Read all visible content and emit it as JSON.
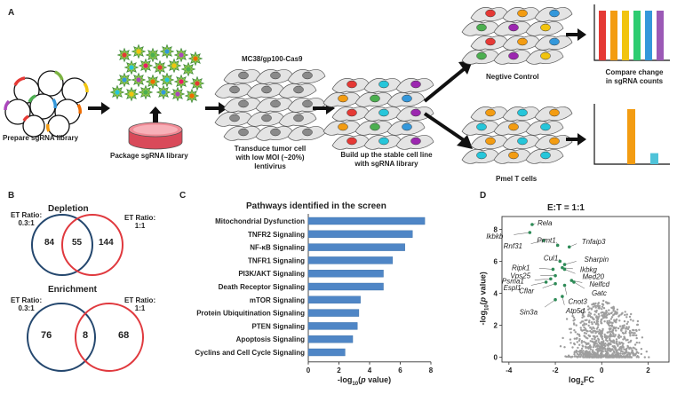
{
  "panels": {
    "a": "A",
    "b": "B",
    "c": "C",
    "d": "D"
  },
  "workflow": {
    "prepare": "Prepare sgRNA library",
    "package": "Package sgRNA library",
    "cell_line": "MC38/gp100-Cas9",
    "transduce_1": "Transduce tumor cell",
    "transduce_2": "with low MOI (~20%) lentivirus",
    "build_1": "Build up the stable cell line",
    "build_2": "with sgRNA library",
    "negative": "Negtive Control",
    "pmel": "Pmel T cells",
    "compare_1": "Compare change",
    "compare_2": "in sgRNA counts"
  },
  "bar_colors": [
    "#e53935",
    "#f39c12",
    "#f1c40f",
    "#2ecc71",
    "#3498db",
    "#9b59b6"
  ],
  "pmel_bars": [
    {
      "color": "#f39c12",
      "value": 1.0
    },
    {
      "color": "#4fc3d9",
      "value": 0.2
    }
  ],
  "venn": {
    "depletion": {
      "title": "Depletion",
      "left_ratio_1": "ET Ratio:",
      "left_ratio_2": "0.3:1",
      "right_ratio_1": "ET Ratio:",
      "right_ratio_2": "1:1",
      "left_only": "84",
      "overlap": "55",
      "right_only": "144"
    },
    "enrichment": {
      "title": "Enrichment",
      "left_ratio_1": "ET Ratio:",
      "left_ratio_2": "0.3:1",
      "right_ratio_1": "ET Ratio:",
      "right_ratio_2": "1:1",
      "left_only": "76",
      "overlap": "8",
      "right_only": "68"
    },
    "colors": {
      "left": "#24476e",
      "right": "#e0393e"
    }
  },
  "chart_data": [
    {
      "type": "bar",
      "orientation": "horizontal",
      "title": "Pathways identified in the screen",
      "xlabel": "-log10(p value)",
      "xlim": [
        0,
        8
      ],
      "xticks": [
        "0",
        "2",
        "4",
        "6",
        "8"
      ],
      "categories": [
        "Mitochondrial Dysfunction",
        "TNFR2 Signaling",
        "NF-κB Signaling",
        "TNFR1 Signaling",
        "PI3K/AKT Signaling",
        "Death Receptor Signaling",
        "mTOR Signaling",
        "Protein Ubiquitination Signaling",
        "PTEN Signaling",
        "Apoptosis Signaling",
        "Cyclins and Cell Cycle Signaling"
      ],
      "values": [
        7.6,
        6.8,
        6.3,
        5.5,
        4.9,
        4.9,
        3.4,
        3.3,
        3.2,
        2.9,
        2.4
      ],
      "bar_color": "#4f86c6"
    },
    {
      "type": "scatter",
      "title": "E:T = 1:1",
      "xlabel": "log2FC",
      "ylabel": "-log10(p value)",
      "xlim": [
        -4.3,
        2.9
      ],
      "ylim": [
        -0.3,
        8.8
      ],
      "xticks": [
        "-4",
        "-2",
        "0",
        "2"
      ],
      "yticks": [
        "0",
        "2",
        "4",
        "6",
        "8"
      ],
      "background_color": "#9e9e9e",
      "highlight_color": "#2e8b57",
      "labeled_points": [
        {
          "label": "Rela",
          "x": -3.0,
          "y": 8.3
        },
        {
          "label": "Ikbkb",
          "x": -3.1,
          "y": 7.8
        },
        {
          "label": "Rnf31",
          "x": -2.5,
          "y": 7.3
        },
        {
          "label": "Prmt1",
          "x": -1.9,
          "y": 7.0
        },
        {
          "label": "Tnfaip3",
          "x": -1.4,
          "y": 6.9
        },
        {
          "label": "Cul1",
          "x": -1.8,
          "y": 6.0
        },
        {
          "label": "Sharpin",
          "x": -1.6,
          "y": 5.8
        },
        {
          "label": "Ripk1",
          "x": -2.1,
          "y": 5.5
        },
        {
          "label": "Ikbkg",
          "x": -1.7,
          "y": 5.6
        },
        {
          "label": "Vps25",
          "x": -2.0,
          "y": 5.1
        },
        {
          "label": "Med20",
          "x": -1.6,
          "y": 5.5
        },
        {
          "label": "Psma1",
          "x": -2.2,
          "y": 4.9
        },
        {
          "label": "Nelfcd",
          "x": -1.3,
          "y": 4.8
        },
        {
          "label": "Espl1",
          "x": -2.4,
          "y": 4.7
        },
        {
          "label": "Gatc",
          "x": -1.2,
          "y": 4.7
        },
        {
          "label": "Cflar",
          "x": -2.0,
          "y": 4.6
        },
        {
          "label": "Cnot3",
          "x": -1.6,
          "y": 4.5
        },
        {
          "label": "Sin3a",
          "x": -2.0,
          "y": 3.6
        },
        {
          "label": "Atp5d",
          "x": -1.7,
          "y": 3.8
        }
      ]
    }
  ]
}
